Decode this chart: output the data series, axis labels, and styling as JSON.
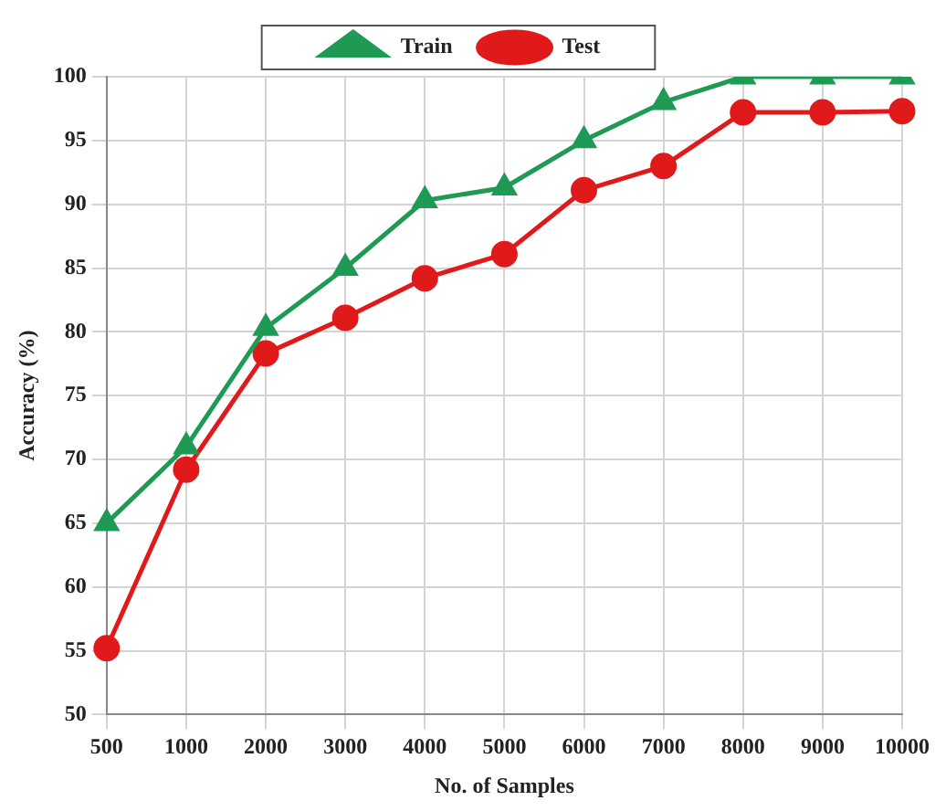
{
  "chart_data": {
    "type": "line",
    "xlabel": "No. of Samples",
    "ylabel": "Accuracy (%)",
    "categories": [
      "500",
      "1000",
      "2000",
      "3000",
      "4000",
      "5000",
      "6000",
      "7000",
      "8000",
      "9000",
      "10000"
    ],
    "series": [
      {
        "name": "Train",
        "color": "#1e9a55",
        "marker": "triangle",
        "values": [
          65,
          71,
          80.3,
          85,
          90.3,
          91.3,
          95,
          98,
          100,
          100,
          100
        ]
      },
      {
        "name": "Test",
        "color": "#e0191b",
        "marker": "circle",
        "values": [
          55.2,
          69.2,
          78.3,
          81.1,
          84.2,
          86.1,
          91.1,
          93,
          97.2,
          97.2,
          97.3
        ]
      }
    ],
    "ylim": [
      50,
      100
    ],
    "yticks": [
      50,
      55,
      60,
      65,
      70,
      75,
      80,
      85,
      90,
      95,
      100
    ],
    "grid": true,
    "legend": "top",
    "line_style": "solid"
  }
}
